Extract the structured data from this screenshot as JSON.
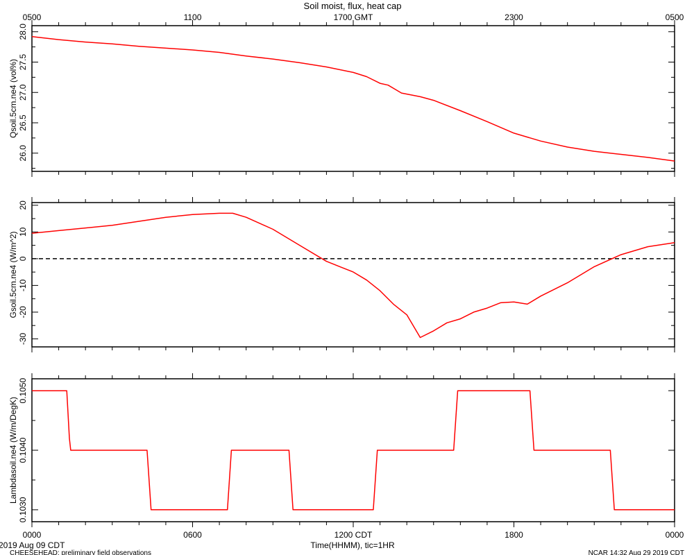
{
  "title": "Soil moist, flux, heat cap",
  "footer": {
    "left_date": "2019 Aug 09 CDT",
    "left_note": "CHEESEHEAD: preliminary field observations",
    "right_note": "NCAR 14:32 Aug 29 2019 CDT"
  },
  "colors": {
    "series": "#ff0000",
    "axis": "#000000"
  },
  "x_axis": {
    "top_labels": [
      "0500",
      "1100",
      "1700 GMT",
      "2300",
      "0500"
    ],
    "bottom_labels": [
      "0000",
      "0600",
      "1200 CDT",
      "1800",
      "0000"
    ],
    "label": "Time(HHMM), tic=1HR",
    "range_hours": [
      0,
      24
    ]
  },
  "chart_data": [
    {
      "type": "line",
      "ylabel": "Qsoil.5cm.ne4 (vol%)",
      "ylim": [
        25.7,
        28.1
      ],
      "yticks": [
        "26.0",
        "26.5",
        "27.0",
        "27.5",
        "28.0"
      ],
      "ytick_values": [
        26.0,
        26.5,
        27.0,
        27.5,
        28.0
      ],
      "zero_line": false,
      "x": [
        0,
        1,
        2,
        3,
        4,
        5,
        6,
        7,
        8,
        9,
        10,
        11,
        12,
        12.5,
        13,
        13.3,
        13.8,
        14.5,
        15,
        16,
        17,
        18,
        19,
        20,
        21,
        22,
        23,
        24
      ],
      "y": [
        27.92,
        27.87,
        27.83,
        27.8,
        27.76,
        27.73,
        27.7,
        27.66,
        27.6,
        27.55,
        27.49,
        27.42,
        27.33,
        27.26,
        27.15,
        27.12,
        26.99,
        26.93,
        26.87,
        26.7,
        26.52,
        26.33,
        26.2,
        26.1,
        26.03,
        25.98,
        25.93,
        25.87
      ]
    },
    {
      "type": "line",
      "ylabel": "Gsoil.5cm.ne4 (W/m^2)",
      "ylim": [
        -33,
        21
      ],
      "yticks": [
        "-30",
        "-20",
        "-10",
        "0",
        "10",
        "20"
      ],
      "ytick_values": [
        -30,
        -20,
        -10,
        0,
        10,
        20
      ],
      "zero_line": true,
      "x": [
        0,
        1,
        2,
        3,
        4,
        5,
        6,
        7,
        7.5,
        8,
        9,
        10,
        11,
        11.5,
        12,
        12.5,
        13,
        13.5,
        14,
        14.5,
        15,
        15.5,
        16,
        16.5,
        17,
        17.5,
        18,
        18.5,
        19,
        20,
        21,
        22,
        23,
        24
      ],
      "y": [
        9.5,
        10.5,
        11.5,
        12.5,
        14,
        15.5,
        16.5,
        17,
        17,
        15.5,
        11,
        5,
        -1,
        -3,
        -5,
        -8,
        -12,
        -17,
        -21,
        -29.5,
        -27,
        -24,
        -22.5,
        -20,
        -18.5,
        -16.5,
        -16.2,
        -17,
        -14,
        -9,
        -3,
        1.5,
        4.5,
        6
      ]
    },
    {
      "type": "line",
      "ylabel": "Lambdasoil.ne4 (W/m/DegK)",
      "ylim": [
        0.1028,
        0.1052
      ],
      "yticks": [
        "0.1030",
        "0.1040",
        "0.1050"
      ],
      "ytick_values": [
        0.103,
        0.104,
        0.105
      ],
      "zero_line": false,
      "x": [
        0,
        1.3,
        1.4,
        1.45,
        4.3,
        4.45,
        7.3,
        7.45,
        9.6,
        9.75,
        12.75,
        12.9,
        15.75,
        15.9,
        18.6,
        18.75,
        21.6,
        21.75,
        24
      ],
      "y": [
        0.105,
        0.105,
        0.1042,
        0.104,
        0.104,
        0.103,
        0.103,
        0.104,
        0.104,
        0.103,
        0.103,
        0.104,
        0.104,
        0.105,
        0.105,
        0.104,
        0.104,
        0.103,
        0.103
      ]
    }
  ]
}
